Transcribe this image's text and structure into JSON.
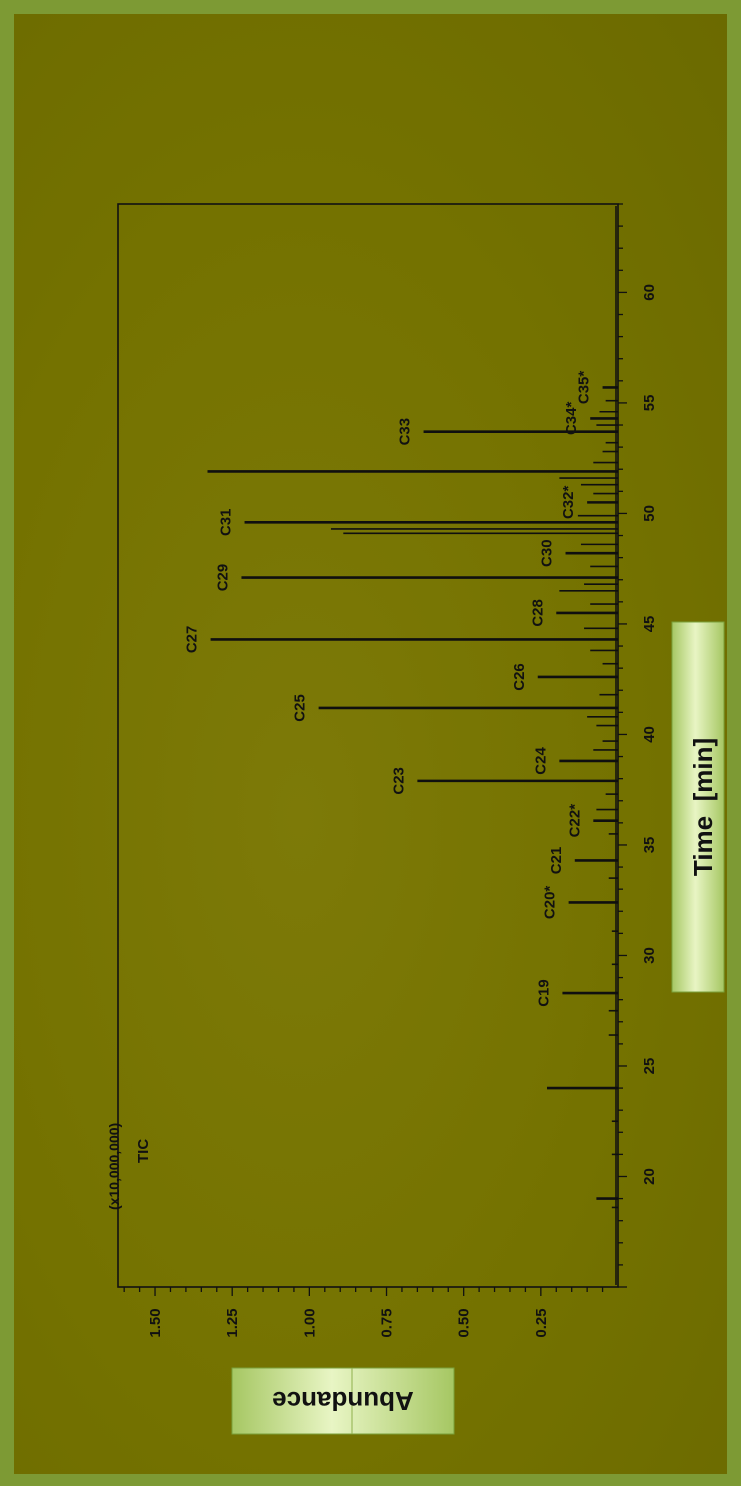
{
  "chart_data": {
    "type": "line",
    "title": "",
    "trace_label": "TIC",
    "multiplier_label": "(x10,000,000)",
    "xlabel": "Time  [min]",
    "ylabel": "Abundance",
    "xlim": [
      15,
      64
    ],
    "ylim": [
      0,
      1.62
    ],
    "x_ticks": [
      20,
      25,
      30,
      35,
      40,
      45,
      50,
      55,
      60
    ],
    "y_ticks": [
      "0.25",
      "0.50",
      "0.75",
      "1.00",
      "1.25",
      "1.50"
    ],
    "y_tick_values": [
      0.25,
      0.5,
      0.75,
      1.0,
      1.25,
      1.5
    ],
    "peaks": [
      {
        "x": 19.0,
        "y": 0.07,
        "label": ""
      },
      {
        "x": 24.0,
        "y": 0.23,
        "label": ""
      },
      {
        "x": 28.3,
        "y": 0.18,
        "label": "C19"
      },
      {
        "x": 32.4,
        "y": 0.16,
        "label": "C20*"
      },
      {
        "x": 34.3,
        "y": 0.14,
        "label": "C21"
      },
      {
        "x": 36.1,
        "y": 0.08,
        "label": "C22*"
      },
      {
        "x": 37.9,
        "y": 0.65,
        "label": "C23"
      },
      {
        "x": 38.8,
        "y": 0.19,
        "label": "C24"
      },
      {
        "x": 41.2,
        "y": 0.97,
        "label": "C25"
      },
      {
        "x": 42.6,
        "y": 0.26,
        "label": "C26"
      },
      {
        "x": 44.3,
        "y": 1.32,
        "label": "C27"
      },
      {
        "x": 45.5,
        "y": 0.2,
        "label": "C28"
      },
      {
        "x": 47.1,
        "y": 1.22,
        "label": "C29"
      },
      {
        "x": 48.2,
        "y": 0.17,
        "label": "C30"
      },
      {
        "x": 49.6,
        "y": 1.21,
        "label": "C31"
      },
      {
        "x": 50.5,
        "y": 0.1,
        "label": "C32*"
      },
      {
        "x": 51.9,
        "y": 1.33,
        "label": ""
      },
      {
        "x": 53.7,
        "y": 0.63,
        "label": "C33"
      },
      {
        "x": 54.3,
        "y": 0.09,
        "label": "C34*"
      },
      {
        "x": 55.7,
        "y": 0.05,
        "label": "C35*"
      }
    ],
    "minor_peaks": [
      {
        "x": 18.6,
        "y": 0.02
      },
      {
        "x": 21.0,
        "y": 0.02
      },
      {
        "x": 22.5,
        "y": 0.02
      },
      {
        "x": 26.4,
        "y": 0.03
      },
      {
        "x": 27.5,
        "y": 0.03
      },
      {
        "x": 29.6,
        "y": 0.02
      },
      {
        "x": 31.1,
        "y": 0.02
      },
      {
        "x": 33.5,
        "y": 0.03
      },
      {
        "x": 35.5,
        "y": 0.03
      },
      {
        "x": 36.6,
        "y": 0.07
      },
      {
        "x": 37.3,
        "y": 0.04
      },
      {
        "x": 39.3,
        "y": 0.08
      },
      {
        "x": 39.7,
        "y": 0.05
      },
      {
        "x": 40.4,
        "y": 0.07
      },
      {
        "x": 40.8,
        "y": 0.1
      },
      {
        "x": 41.8,
        "y": 0.06
      },
      {
        "x": 43.2,
        "y": 0.05
      },
      {
        "x": 43.8,
        "y": 0.09
      },
      {
        "x": 44.8,
        "y": 0.11
      },
      {
        "x": 45.9,
        "y": 0.09
      },
      {
        "x": 46.5,
        "y": 0.19
      },
      {
        "x": 46.8,
        "y": 0.11
      },
      {
        "x": 47.6,
        "y": 0.09
      },
      {
        "x": 48.6,
        "y": 0.12
      },
      {
        "x": 49.1,
        "y": 0.89
      },
      {
        "x": 49.3,
        "y": 0.93
      },
      {
        "x": 49.9,
        "y": 0.13
      },
      {
        "x": 50.9,
        "y": 0.08
      },
      {
        "x": 51.3,
        "y": 0.12
      },
      {
        "x": 51.6,
        "y": 0.19
      },
      {
        "x": 52.3,
        "y": 0.08
      },
      {
        "x": 52.8,
        "y": 0.05
      },
      {
        "x": 53.2,
        "y": 0.04
      },
      {
        "x": 54.0,
        "y": 0.07
      },
      {
        "x": 54.6,
        "y": 0.06
      },
      {
        "x": 55.1,
        "y": 0.04
      }
    ],
    "grid": false
  },
  "colors": {
    "background": "#747200",
    "border": "#7d9a34",
    "trace": "#0f0f0f",
    "label_box": "#c7df8c"
  }
}
